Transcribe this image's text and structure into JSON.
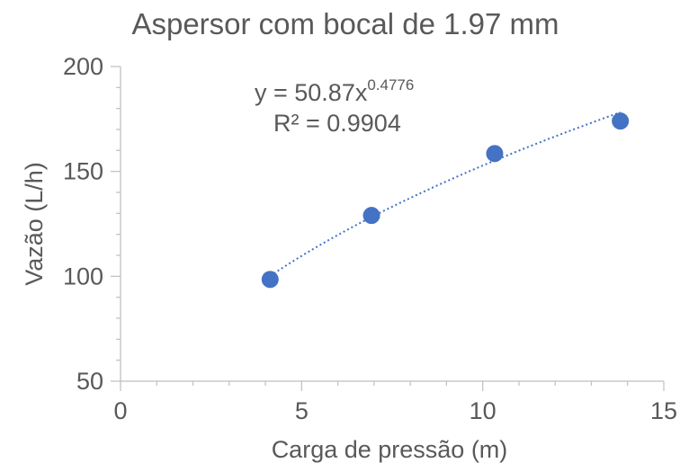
{
  "chart_data": {
    "type": "scatter",
    "title": "Aspersor com bocal de 1.97 mm",
    "xlabel": "Carga de pressão (m)",
    "ylabel": "Vazão (L/h)",
    "xlim": [
      0,
      15
    ],
    "ylim": [
      50,
      200
    ],
    "x_ticks": [
      "0",
      "5",
      "10",
      "15"
    ],
    "y_ticks": [
      "50",
      "100",
      "150",
      "200"
    ],
    "grid": false,
    "legend": "none",
    "colors": {
      "marker": "#4472c4",
      "trendline": "#4472c4",
      "axis": "#bfbfbf",
      "text": "#595959"
    },
    "series": [
      {
        "x": [
          4.13,
          6.93,
          10.33,
          13.8
        ],
        "y": [
          98.5,
          129,
          158.5,
          174
        ]
      }
    ],
    "trendline": {
      "type": "power",
      "coefficient": 50.87,
      "exponent": 0.4776,
      "equation_base": "y = 50.87x",
      "equation_exponent": "0.4776",
      "r_squared": "R² = 0.9904"
    }
  }
}
